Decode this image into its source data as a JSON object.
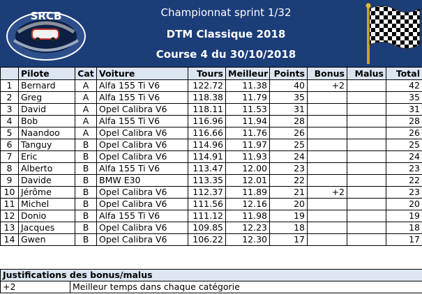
{
  "header": {
    "line1": "Championnat sprint 1/32",
    "line2": "DTM Classique 2018",
    "line3": "Course 4 du 30/10/2018",
    "logo_text": "SRCB"
  },
  "columns": [
    "",
    "Pilote",
    "Cat",
    "Voiture",
    "Tours",
    "Meilleur",
    "Points",
    "Bonus",
    "Malus",
    "Total"
  ],
  "rows": [
    {
      "pos": "1",
      "pilote": "Bernard",
      "cat": "A",
      "voiture": "Alfa 155 Ti V6",
      "tours": "122.72",
      "meilleur": "11.38",
      "points": "40",
      "bonus": "+2",
      "malus": "",
      "total": "42"
    },
    {
      "pos": "2",
      "pilote": "Greg",
      "cat": "A",
      "voiture": "Alfa 155 Ti V6",
      "tours": "118.38",
      "meilleur": "11.79",
      "points": "35",
      "bonus": "",
      "malus": "",
      "total": "35"
    },
    {
      "pos": "3",
      "pilote": "David",
      "cat": "A",
      "voiture": "Opel Calibra V6",
      "tours": "118.11",
      "meilleur": "11.53",
      "points": "31",
      "bonus": "",
      "malus": "",
      "total": "31"
    },
    {
      "pos": "4",
      "pilote": "Bob",
      "cat": "A",
      "voiture": "Alfa 155 Ti V6",
      "tours": "116.96",
      "meilleur": "11.94",
      "points": "28",
      "bonus": "",
      "malus": "",
      "total": "28"
    },
    {
      "pos": "5",
      "pilote": "Naandoo",
      "cat": "A",
      "voiture": "Opel Calibra V6",
      "tours": "116.66",
      "meilleur": "11.76",
      "points": "26",
      "bonus": "",
      "malus": "",
      "total": "26"
    },
    {
      "pos": "6",
      "pilote": "Tanguy",
      "cat": "B",
      "voiture": "Opel Calibra V6",
      "tours": "114.96",
      "meilleur": "11.97",
      "points": "25",
      "bonus": "",
      "malus": "",
      "total": "25"
    },
    {
      "pos": "7",
      "pilote": "Eric",
      "cat": "B",
      "voiture": "Opel Calibra V6",
      "tours": "114.91",
      "meilleur": "11.93",
      "points": "24",
      "bonus": "",
      "malus": "",
      "total": "24"
    },
    {
      "pos": "8",
      "pilote": "Alberto",
      "cat": "B",
      "voiture": "Alfa 155 Ti V6",
      "tours": "113.47",
      "meilleur": "12.00",
      "points": "23",
      "bonus": "",
      "malus": "",
      "total": "23"
    },
    {
      "pos": "9",
      "pilote": "Davide",
      "cat": "B",
      "voiture": "BMW E30",
      "tours": "113.35",
      "meilleur": "12.01",
      "points": "22",
      "bonus": "",
      "malus": "",
      "total": "22"
    },
    {
      "pos": "10",
      "pilote": "Jérôme",
      "cat": "B",
      "voiture": "Opel Calibra V6",
      "tours": "112.37",
      "meilleur": "11.89",
      "points": "21",
      "bonus": "+2",
      "malus": "",
      "total": "23"
    },
    {
      "pos": "11",
      "pilote": "Michel",
      "cat": "B",
      "voiture": "Opel Calibra V6",
      "tours": "111.56",
      "meilleur": "12.16",
      "points": "20",
      "bonus": "",
      "malus": "",
      "total": "20"
    },
    {
      "pos": "12",
      "pilote": "Donio",
      "cat": "B",
      "voiture": "Alfa 155 Ti V6",
      "tours": "111.12",
      "meilleur": "11.98",
      "points": "19",
      "bonus": "",
      "malus": "",
      "total": "19"
    },
    {
      "pos": "13",
      "pilote": "Jacques",
      "cat": "B",
      "voiture": "Opel Calibra V6",
      "tours": "109.85",
      "meilleur": "12.23",
      "points": "18",
      "bonus": "",
      "malus": "",
      "total": "18"
    },
    {
      "pos": "14",
      "pilote": "Gwen",
      "cat": "B",
      "voiture": "Opel Calibra V6",
      "tours": "106.22",
      "meilleur": "12.30",
      "points": "17",
      "bonus": "",
      "malus": "",
      "total": "17"
    }
  ],
  "justifications": {
    "title": "Justifications des bonus/malus",
    "items": [
      {
        "value": "+2",
        "text": "Meilleur temps dans chaque catégorie"
      }
    ]
  },
  "colors": {
    "header_bg": "#1b3d78",
    "table_header_bg": "#dce6f1"
  }
}
